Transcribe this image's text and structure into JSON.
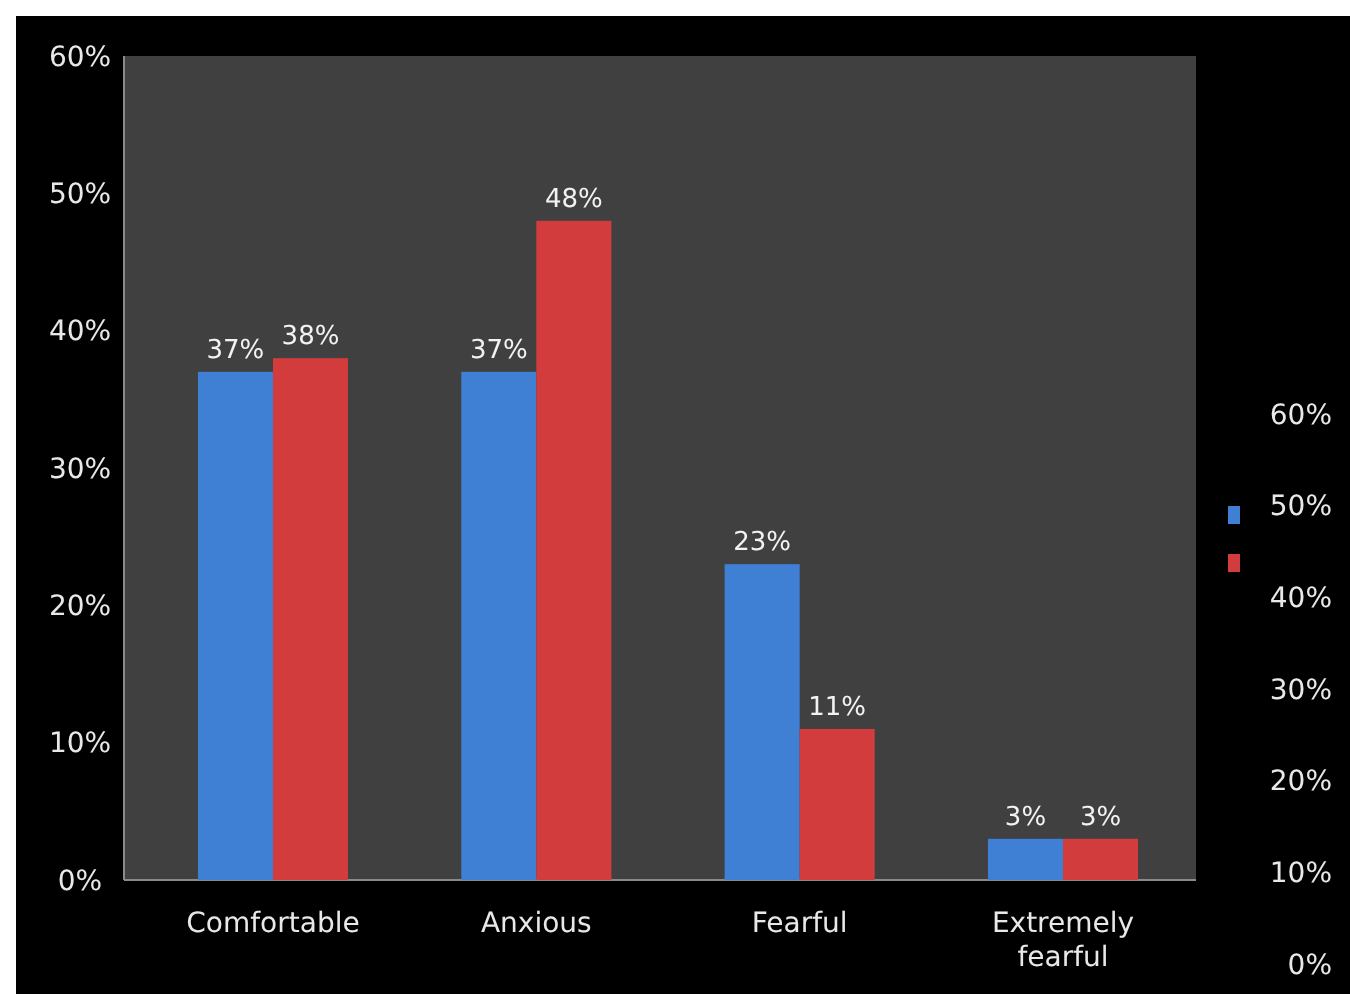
{
  "chart_data": {
    "type": "bar",
    "categories": [
      "Comfortable",
      "Anxious",
      "Fearful",
      "Extremely fearful"
    ],
    "series": [
      {
        "color": "#3f7fd4",
        "values": [
          37,
          37,
          23,
          3
        ]
      },
      {
        "color": "#d23c3c",
        "values": [
          38,
          48,
          11,
          3
        ]
      }
    ],
    "ylim": [
      0,
      60
    ],
    "yticks": [
      {
        "value": 0,
        "label": "0%"
      },
      {
        "value": 10,
        "label": "10%"
      },
      {
        "value": 20,
        "label": "20%"
      },
      {
        "value": 30,
        "label": "30%"
      },
      {
        "value": 40,
        "label": "40%"
      },
      {
        "value": 50,
        "label": "50%"
      },
      {
        "value": 60,
        "label": "60%"
      }
    ],
    "y2lim": [
      0,
      60
    ],
    "y2ticks": [
      {
        "value": 0,
        "label": "0%"
      },
      {
        "value": 10,
        "label": "10%"
      },
      {
        "value": 20,
        "label": "20%"
      },
      {
        "value": 30,
        "label": "30%"
      },
      {
        "value": 40,
        "label": "40%"
      },
      {
        "value": 50,
        "label": "50%"
      },
      {
        "value": 60,
        "label": "60%"
      }
    ],
    "value_labels": [
      [
        "37%",
        "37%",
        "23%",
        "3%"
      ],
      [
        "38%",
        "48%",
        "11%",
        "3%"
      ]
    ],
    "grid": false
  }
}
